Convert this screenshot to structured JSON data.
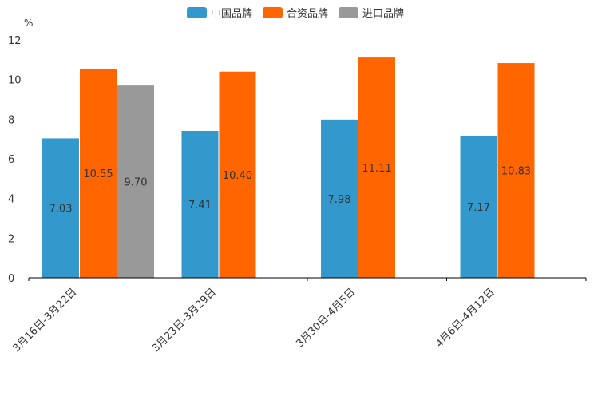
{
  "chart_data": {
    "type": "bar",
    "title": "",
    "xlabel": "",
    "ylabel": "%",
    "ylim": [
      0,
      12
    ],
    "yticks": [
      0,
      2,
      4,
      6,
      8,
      10,
      12
    ],
    "categories": [
      "3月16日-3月22日",
      "3月23日-3月29日",
      "3月30日-4月5日",
      "4月6日-4月12日"
    ],
    "series": [
      {
        "name": "中国品牌",
        "color": "#3399cc",
        "values": [
          7.03,
          7.41,
          7.98,
          7.17
        ],
        "labels": [
          "7.03",
          "7.41",
          "7.98",
          "7.17"
        ]
      },
      {
        "name": "合资品牌",
        "color": "#ff6600",
        "values": [
          10.55,
          10.4,
          11.11,
          10.83
        ],
        "labels": [
          "10.55",
          "10.40",
          "11.11",
          "10.83"
        ]
      },
      {
        "name": "进口品牌",
        "color": "#999999",
        "values": [
          9.7,
          null,
          null,
          null
        ],
        "labels": [
          "9.70",
          "",
          "",
          ""
        ]
      }
    ],
    "legend_position": "top-center",
    "grid": false
  }
}
